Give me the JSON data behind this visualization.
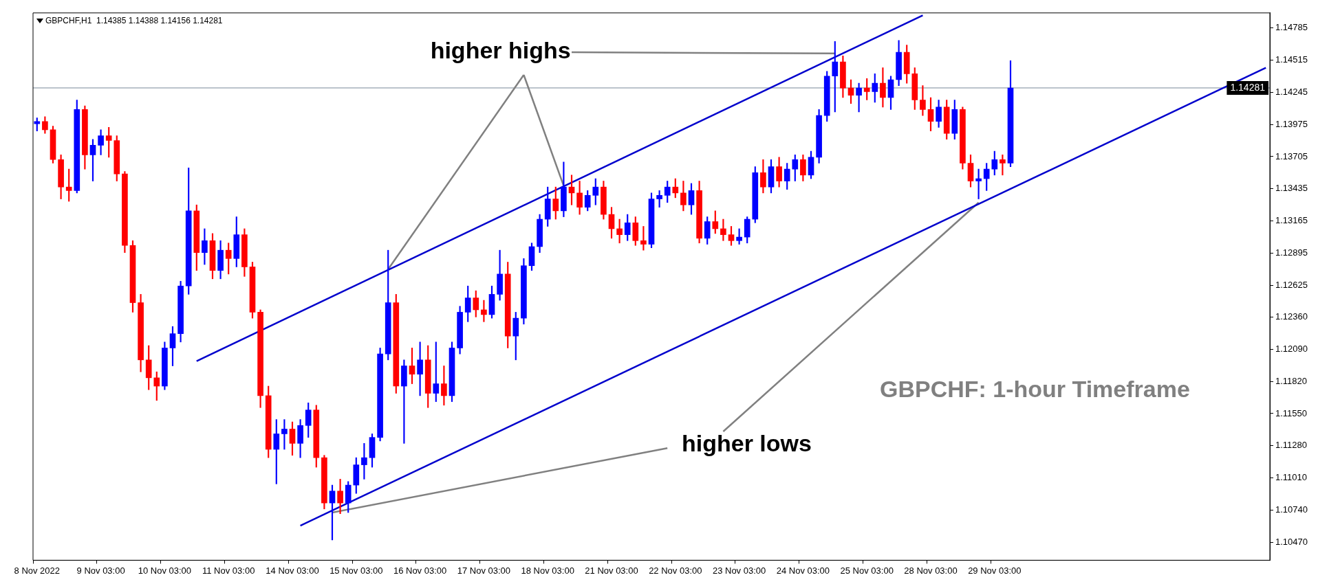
{
  "chart_data": {
    "type": "candlestick",
    "title": "GBPCHF,H1  1.14385 1.14388 1.14156 1.14281",
    "categories": [
      "8 Nov 2022",
      null,
      null,
      null,
      null,
      null,
      null,
      null,
      "9 Nov 03:00",
      null,
      null,
      null,
      null,
      null,
      null,
      null,
      "10 Nov 03:00",
      null,
      null,
      null,
      null,
      null,
      null,
      null,
      "11 Nov 03:00",
      null,
      null,
      null,
      null,
      null,
      null,
      null,
      "14 Nov 03:00",
      null,
      null,
      null,
      null,
      null,
      null,
      null,
      "15 Nov 03:00",
      null,
      null,
      null,
      null,
      null,
      null,
      null,
      "16 Nov 03:00",
      null,
      null,
      null,
      null,
      null,
      null,
      null,
      "17 Nov 03:00",
      null,
      null,
      null,
      null,
      null,
      null,
      null,
      "18 Nov 03:00",
      null,
      null,
      null,
      null,
      null,
      null,
      null,
      "21 Nov 03:00",
      null,
      null,
      null,
      null,
      null,
      null,
      null,
      "22 Nov 03:00",
      null,
      null,
      null,
      null,
      null,
      null,
      null,
      "23 Nov 03:00",
      null,
      null,
      null,
      null,
      null,
      null,
      null,
      "24 Nov 03:00",
      null,
      null,
      null,
      null,
      null,
      null,
      null,
      "25 Nov 03:00",
      null,
      null,
      null,
      null,
      null,
      null,
      null,
      "28 Nov 03:00",
      null,
      null,
      null,
      null,
      null,
      null,
      null,
      "29 Nov 03:00",
      null,
      null,
      null,
      null,
      null,
      null,
      null,
      null,
      null,
      null,
      null,
      null,
      null,
      null,
      null,
      null,
      null,
      null,
      null,
      null,
      null,
      null,
      null,
      null,
      null,
      null,
      null,
      null,
      null,
      null,
      null,
      null,
      null,
      null
    ],
    "ohlc": [
      [
        1.1398,
        1.1403,
        1.1392,
        1.14
      ],
      [
        1.14,
        1.1404,
        1.139,
        1.1393
      ],
      [
        1.1393,
        1.1396,
        1.1365,
        1.1368
      ],
      [
        1.1368,
        1.1372,
        1.1335,
        1.1345
      ],
      [
        1.1345,
        1.136,
        1.1333,
        1.1342
      ],
      [
        1.1342,
        1.1418,
        1.134,
        1.141
      ],
      [
        1.141,
        1.1413,
        1.136,
        1.1372
      ],
      [
        1.1372,
        1.1385,
        1.135,
        1.138
      ],
      [
        1.138,
        1.1393,
        1.1372,
        1.1388
      ],
      [
        1.1388,
        1.1395,
        1.137,
        1.1384
      ],
      [
        1.1384,
        1.1388,
        1.135,
        1.1356
      ],
      [
        1.1356,
        1.1358,
        1.129,
        1.1296
      ],
      [
        1.1296,
        1.13,
        1.124,
        1.1248
      ],
      [
        1.1248,
        1.1255,
        1.119,
        1.12
      ],
      [
        1.12,
        1.1212,
        1.1175,
        1.1185
      ],
      [
        1.1185,
        1.119,
        1.1166,
        1.1178
      ],
      [
        1.1178,
        1.1215,
        1.1175,
        1.121
      ],
      [
        1.121,
        1.1228,
        1.1195,
        1.1222
      ],
      [
        1.1222,
        1.1266,
        1.1215,
        1.1262
      ],
      [
        1.1262,
        1.1361,
        1.1255,
        1.1325
      ],
      [
        1.1325,
        1.133,
        1.1275,
        1.129
      ],
      [
        1.129,
        1.131,
        1.128,
        1.13
      ],
      [
        1.13,
        1.1306,
        1.1268,
        1.1275
      ],
      [
        1.1275,
        1.13,
        1.1268,
        1.1292
      ],
      [
        1.1292,
        1.1298,
        1.1272,
        1.1285
      ],
      [
        1.1285,
        1.132,
        1.1278,
        1.1305
      ],
      [
        1.1305,
        1.131,
        1.127,
        1.1278
      ],
      [
        1.1278,
        1.1282,
        1.1235,
        1.124
      ],
      [
        1.124,
        1.1242,
        1.116,
        1.117
      ],
      [
        1.117,
        1.1178,
        1.1118,
        1.1125
      ],
      [
        1.1125,
        1.115,
        1.1096,
        1.1138
      ],
      [
        1.1138,
        1.115,
        1.1125,
        1.1142
      ],
      [
        1.1142,
        1.1148,
        1.112,
        1.113
      ],
      [
        1.113,
        1.115,
        1.1118,
        1.1145
      ],
      [
        1.1145,
        1.1164,
        1.1135,
        1.1158
      ],
      [
        1.1158,
        1.1162,
        1.111,
        1.1118
      ],
      [
        1.1118,
        1.112,
        1.1075,
        1.108
      ],
      [
        1.108,
        1.1095,
        1.1049,
        1.109
      ],
      [
        1.109,
        1.11,
        1.1071,
        1.108
      ],
      [
        1.108,
        1.1098,
        1.1072,
        1.1095
      ],
      [
        1.1095,
        1.1118,
        1.1088,
        1.1112
      ],
      [
        1.1112,
        1.113,
        1.11,
        1.1118
      ],
      [
        1.1118,
        1.1138,
        1.111,
        1.1135
      ],
      [
        1.1135,
        1.121,
        1.1132,
        1.1205
      ],
      [
        1.1205,
        1.1292,
        1.12,
        1.1248
      ],
      [
        1.1248,
        1.1255,
        1.1172,
        1.1178
      ],
      [
        1.1178,
        1.12,
        1.113,
        1.1195
      ],
      [
        1.1195,
        1.121,
        1.118,
        1.1188
      ],
      [
        1.1188,
        1.1215,
        1.117,
        1.12
      ],
      [
        1.12,
        1.1212,
        1.116,
        1.1172
      ],
      [
        1.1172,
        1.1215,
        1.1165,
        1.118
      ],
      [
        1.118,
        1.1195,
        1.1162,
        1.117
      ],
      [
        1.117,
        1.1215,
        1.1165,
        1.121
      ],
      [
        1.121,
        1.1245,
        1.1205,
        1.124
      ],
      [
        1.124,
        1.1262,
        1.1232,
        1.1252
      ],
      [
        1.1252,
        1.1258,
        1.1236,
        1.1242
      ],
      [
        1.1242,
        1.125,
        1.1232,
        1.1238
      ],
      [
        1.1238,
        1.1262,
        1.1235,
        1.1255
      ],
      [
        1.1255,
        1.1292,
        1.125,
        1.1272
      ],
      [
        1.1272,
        1.1282,
        1.121,
        1.122
      ],
      [
        1.122,
        1.124,
        1.12,
        1.1235
      ],
      [
        1.1235,
        1.1285,
        1.123,
        1.1279
      ],
      [
        1.1279,
        1.1298,
        1.1275,
        1.1295
      ],
      [
        1.1295,
        1.1322,
        1.129,
        1.1318
      ],
      [
        1.1318,
        1.1345,
        1.1312,
        1.1335
      ],
      [
        1.1335,
        1.1345,
        1.1318,
        1.1325
      ],
      [
        1.1325,
        1.1366,
        1.132,
        1.1345
      ],
      [
        1.1345,
        1.1355,
        1.133,
        1.134
      ],
      [
        1.134,
        1.135,
        1.1322,
        1.1328
      ],
      [
        1.1328,
        1.1342,
        1.1325,
        1.1338
      ],
      [
        1.1338,
        1.1352,
        1.133,
        1.1345
      ],
      [
        1.1345,
        1.135,
        1.1318,
        1.1322
      ],
      [
        1.1322,
        1.1328,
        1.1302,
        1.131
      ],
      [
        1.131,
        1.1318,
        1.1298,
        1.1305
      ],
      [
        1.1305,
        1.1322,
        1.13,
        1.1315
      ],
      [
        1.1315,
        1.132,
        1.1296,
        1.13
      ],
      [
        1.13,
        1.1312,
        1.1292,
        1.1297
      ],
      [
        1.1297,
        1.134,
        1.1294,
        1.1335
      ],
      [
        1.1335,
        1.1342,
        1.1328,
        1.1338
      ],
      [
        1.1338,
        1.135,
        1.1332,
        1.1345
      ],
      [
        1.1345,
        1.1352,
        1.1336,
        1.134
      ],
      [
        1.134,
        1.135,
        1.1325,
        1.133
      ],
      [
        1.133,
        1.1348,
        1.1322,
        1.1342
      ],
      [
        1.1342,
        1.135,
        1.1298,
        1.1302
      ],
      [
        1.1302,
        1.132,
        1.1297,
        1.1316
      ],
      [
        1.1316,
        1.1325,
        1.1306,
        1.131
      ],
      [
        1.131,
        1.1318,
        1.13,
        1.1305
      ],
      [
        1.1305,
        1.1312,
        1.1296,
        1.13
      ],
      [
        1.13,
        1.131,
        1.1297,
        1.1303
      ],
      [
        1.1303,
        1.132,
        1.1298,
        1.1318
      ],
      [
        1.1318,
        1.1362,
        1.1315,
        1.1357
      ],
      [
        1.1357,
        1.1368,
        1.134,
        1.1345
      ],
      [
        1.1345,
        1.1368,
        1.134,
        1.1362
      ],
      [
        1.1362,
        1.137,
        1.1345,
        1.135
      ],
      [
        1.135,
        1.1365,
        1.1343,
        1.136
      ],
      [
        1.136,
        1.1372,
        1.135,
        1.1368
      ],
      [
        1.1368,
        1.1372,
        1.135,
        1.1355
      ],
      [
        1.1355,
        1.1375,
        1.1352,
        1.137
      ],
      [
        1.137,
        1.141,
        1.1365,
        1.1405
      ],
      [
        1.1405,
        1.1442,
        1.14,
        1.1438
      ],
      [
        1.1438,
        1.1467,
        1.1408,
        1.145
      ],
      [
        1.145,
        1.1455,
        1.142,
        1.1428
      ],
      [
        1.1428,
        1.1435,
        1.1415,
        1.1422
      ],
      [
        1.1422,
        1.1432,
        1.1408,
        1.1428
      ],
      [
        1.1428,
        1.1436,
        1.1418,
        1.1425
      ],
      [
        1.1425,
        1.144,
        1.1416,
        1.1432
      ],
      [
        1.1432,
        1.1445,
        1.1412,
        1.142
      ],
      [
        1.142,
        1.1438,
        1.141,
        1.1435
      ],
      [
        1.1435,
        1.1468,
        1.143,
        1.1458
      ],
      [
        1.1458,
        1.1464,
        1.1432,
        1.144
      ],
      [
        1.144,
        1.1445,
        1.141,
        1.1418
      ],
      [
        1.1418,
        1.143,
        1.1405,
        1.141
      ],
      [
        1.141,
        1.142,
        1.1392,
        1.14
      ],
      [
        1.14,
        1.1418,
        1.1395,
        1.1412
      ],
      [
        1.1412,
        1.1418,
        1.1385,
        1.139
      ],
      [
        1.139,
        1.1418,
        1.1385,
        1.141
      ],
      [
        1.141,
        1.1412,
        1.136,
        1.1365
      ],
      [
        1.1365,
        1.1372,
        1.1345,
        1.135
      ],
      [
        1.135,
        1.136,
        1.1335,
        1.1352
      ],
      [
        1.1352,
        1.1365,
        1.1342,
        1.136
      ],
      [
        1.136,
        1.1375,
        1.1355,
        1.1368
      ],
      [
        1.1368,
        1.1372,
        1.1355,
        1.1365
      ],
      [
        1.1365,
        1.1451,
        1.1362,
        1.14281
      ],
      null,
      null,
      null,
      null,
      null,
      null,
      null,
      null,
      null,
      null,
      null,
      null,
      null,
      null,
      null,
      null,
      null,
      null,
      null,
      null,
      null,
      null,
      null,
      null,
      null,
      null,
      null,
      null,
      null,
      null,
      null,
      null
    ],
    "colors": [
      "#0000ff",
      "#ff0000",
      "#ff0000",
      "#ff0000",
      "#ff0000",
      "#0000ff",
      "#ff0000",
      "#0000ff",
      "#0000ff",
      "#ff0000",
      "#ff0000",
      "#ff0000",
      "#ff0000",
      "#ff0000",
      "#ff0000",
      "#ff0000",
      "#0000ff",
      "#0000ff",
      "#0000ff",
      "#0000ff",
      "#ff0000",
      "#0000ff",
      "#ff0000",
      "#0000ff",
      "#ff0000",
      "#0000ff",
      "#ff0000",
      "#ff0000",
      "#ff0000",
      "#ff0000",
      "#0000ff",
      "#0000ff",
      "#ff0000",
      "#0000ff",
      "#0000ff",
      "#ff0000",
      "#ff0000",
      "#0000ff",
      "#ff0000",
      "#0000ff",
      "#0000ff",
      "#0000ff",
      "#0000ff",
      "#0000ff",
      "#0000ff",
      "#ff0000",
      "#0000ff",
      "#ff0000",
      "#0000ff",
      "#ff0000",
      "#0000ff",
      "#ff0000",
      "#0000ff",
      "#0000ff",
      "#0000ff",
      "#ff0000",
      "#ff0000",
      "#0000ff",
      "#0000ff",
      "#ff0000",
      "#0000ff",
      "#0000ff",
      "#0000ff",
      "#0000ff",
      "#0000ff",
      "#ff0000",
      "#0000ff",
      "#ff0000",
      "#ff0000",
      "#0000ff",
      "#0000ff",
      "#ff0000",
      "#ff0000",
      "#ff0000",
      "#0000ff",
      "#ff0000",
      "#ff0000",
      "#0000ff",
      "#0000ff",
      "#0000ff",
      "#ff0000",
      "#ff0000",
      "#0000ff",
      "#ff0000",
      "#0000ff",
      "#ff0000",
      "#ff0000",
      "#ff0000",
      "#0000ff",
      "#0000ff",
      "#0000ff",
      "#ff0000",
      "#0000ff",
      "#ff0000",
      "#0000ff",
      "#0000ff",
      "#ff0000",
      "#0000ff",
      "#0000ff",
      "#0000ff",
      "#0000ff",
      "#ff0000",
      "#ff0000",
      "#0000ff",
      "#ff0000",
      "#0000ff",
      "#ff0000",
      "#0000ff",
      "#0000ff",
      "#ff0000",
      "#ff0000",
      "#ff0000",
      "#ff0000",
      "#0000ff",
      "#ff0000",
      "#0000ff",
      "#ff0000",
      "#ff0000",
      "#0000ff",
      "#0000ff",
      "#0000ff",
      "#ff0000",
      "#0000ff",
      null,
      null,
      null,
      null,
      null,
      null,
      null,
      null,
      null,
      null,
      null,
      null,
      null,
      null,
      null,
      null,
      null,
      null,
      null,
      null,
      null,
      null,
      null,
      null,
      null,
      null,
      null,
      null,
      null,
      null,
      null,
      null
    ],
    "series": [
      {
        "type": "line",
        "color": "#0000cc",
        "values": [
          null,
          null,
          null,
          null,
          null,
          null,
          null,
          null,
          null,
          null,
          null,
          null,
          null,
          null,
          null,
          null,
          null,
          null,
          null,
          null,
          1.1199,
          null,
          null,
          null,
          null,
          null,
          null,
          null,
          null,
          null,
          null,
          null,
          null,
          null,
          null,
          null,
          null,
          null,
          null,
          null,
          null,
          null,
          null,
          null,
          null,
          null,
          null,
          null,
          null,
          null,
          null,
          null,
          null,
          null,
          null,
          null,
          null,
          null,
          null,
          null,
          null,
          null,
          null,
          null,
          null,
          null,
          null,
          null,
          null,
          null,
          null,
          null,
          null,
          null,
          null,
          null,
          null,
          null,
          null,
          null,
          null,
          null,
          null,
          null,
          null,
          null,
          null,
          null,
          null,
          null,
          null,
          null,
          null,
          null,
          null,
          null,
          null,
          null,
          null,
          null,
          null,
          null,
          null,
          null,
          null,
          null,
          null,
          null,
          null,
          null,
          null,
          1.1489,
          null,
          null,
          null,
          null,
          null,
          null,
          null,
          null,
          null,
          null,
          null,
          null,
          null,
          null,
          null,
          null,
          null,
          null,
          null,
          null,
          null,
          null,
          null,
          null,
          null,
          null,
          null,
          null,
          null,
          null,
          null,
          null,
          null,
          null,
          null,
          null,
          null,
          null,
          null,
          null,
          null,
          null,
          null
        ]
      },
      {
        "type": "line",
        "color": "#0000cc",
        "values": [
          null,
          null,
          null,
          null,
          null,
          null,
          null,
          null,
          null,
          null,
          null,
          null,
          null,
          null,
          null,
          null,
          null,
          null,
          null,
          null,
          null,
          null,
          null,
          null,
          null,
          null,
          null,
          null,
          null,
          null,
          null,
          null,
          null,
          1.1061,
          null,
          null,
          null,
          null,
          null,
          null,
          null,
          null,
          null,
          null,
          null,
          null,
          null,
          null,
          null,
          null,
          null,
          null,
          null,
          null,
          null,
          null,
          null,
          null,
          null,
          null,
          null,
          null,
          null,
          null,
          null,
          null,
          null,
          null,
          null,
          null,
          null,
          null,
          null,
          null,
          null,
          null,
          null,
          null,
          null,
          null,
          null,
          null,
          null,
          null,
          null,
          null,
          null,
          null,
          null,
          null,
          null,
          null,
          null,
          null,
          null,
          null,
          null,
          null,
          null,
          null,
          null,
          null,
          null,
          null,
          null,
          null,
          null,
          null,
          null,
          null,
          null,
          null,
          null,
          null,
          null,
          null,
          null,
          null,
          null,
          null,
          null,
          null,
          null,
          null,
          null,
          null,
          null,
          null,
          null,
          null,
          null,
          null,
          null,
          null,
          null,
          null,
          null,
          null,
          null,
          null,
          null,
          null,
          null,
          null,
          null,
          null,
          null,
          null,
          null,
          null,
          null,
          null,
          null,
          null,
          1.1445
        ]
      },
      {
        "type": "line",
        "color": "#808080",
        "values": [
          null,
          null,
          null,
          null,
          null,
          null,
          null,
          null,
          null,
          null,
          null,
          null,
          null,
          null,
          null,
          null,
          null,
          null,
          null,
          null,
          null,
          null,
          null,
          null,
          null,
          null,
          null,
          null,
          null,
          null,
          null,
          null,
          null,
          null,
          null,
          null,
          null,
          null,
          null,
          null,
          null,
          null,
          null,
          null,
          null,
          null,
          null,
          null,
          null,
          null,
          null,
          null,
          null,
          null,
          null,
          null,
          null,
          null,
          null,
          null,
          null,
          null,
          null,
          null,
          null,
          null,
          null,
          1.1458,
          null,
          null,
          null,
          null,
          null,
          null,
          null,
          null,
          null,
          null,
          null,
          null,
          null,
          null,
          null,
          null,
          null,
          null,
          null,
          null,
          null,
          null,
          null,
          null,
          null,
          null,
          null,
          null,
          null,
          null,
          null,
          null,
          1.1457,
          null,
          null,
          null,
          null,
          null,
          null,
          null,
          null,
          null,
          null,
          null,
          null,
          null,
          null,
          null,
          null,
          null,
          null,
          null,
          null,
          null,
          null,
          null,
          null,
          null,
          null,
          null,
          null,
          null,
          null,
          null,
          null,
          null,
          null,
          null,
          null,
          null,
          null,
          null,
          null,
          null,
          null,
          null,
          null,
          null,
          null,
          null,
          null,
          null,
          null,
          null,
          null,
          null,
          null
        ]
      },
      {
        "type": "line",
        "color": "#808080",
        "values": [
          null,
          null,
          null,
          null,
          null,
          null,
          null,
          null,
          null,
          null,
          null,
          null,
          null,
          null,
          null,
          null,
          null,
          null,
          null,
          null,
          null,
          null,
          null,
          null,
          null,
          null,
          null,
          null,
          null,
          null,
          null,
          null,
          null,
          null,
          null,
          null,
          null,
          null,
          null,
          null,
          null,
          null,
          null,
          null,
          1.1276,
          null,
          null,
          null,
          null,
          null,
          null,
          null,
          null,
          null,
          null,
          null,
          null,
          null,
          null,
          null,
          null,
          1.1439,
          null,
          null,
          null,
          null,
          null,
          null,
          null,
          null,
          null,
          null,
          null,
          null,
          null,
          null,
          null,
          null,
          null,
          null,
          null,
          null,
          null,
          null,
          null,
          null,
          null,
          null,
          null,
          null,
          null,
          null,
          null,
          null,
          null,
          null,
          null,
          null,
          null,
          null,
          null,
          null,
          null,
          null,
          null,
          null,
          null,
          null,
          null,
          null,
          null,
          null,
          null,
          null,
          null,
          null,
          null,
          null,
          null,
          null,
          null,
          null,
          null,
          null,
          null,
          null,
          null,
          null,
          null,
          null,
          null,
          null,
          null,
          null,
          null,
          null,
          null,
          null,
          null,
          null,
          null,
          null,
          null,
          null,
          null,
          null,
          null,
          null,
          null,
          null,
          null,
          null,
          null,
          null,
          null
        ]
      },
      {
        "type": "line",
        "color": "#808080",
        "values": [
          null,
          null,
          null,
          null,
          null,
          null,
          null,
          null,
          null,
          null,
          null,
          null,
          null,
          null,
          null,
          null,
          null,
          null,
          null,
          null,
          null,
          null,
          null,
          null,
          null,
          null,
          null,
          null,
          null,
          null,
          null,
          null,
          null,
          null,
          null,
          null,
          null,
          null,
          null,
          null,
          null,
          null,
          null,
          null,
          null,
          null,
          null,
          null,
          null,
          null,
          null,
          null,
          null,
          null,
          null,
          null,
          null,
          null,
          null,
          null,
          null,
          1.1439,
          null,
          null,
          null,
          null,
          1.1346,
          null,
          null,
          null,
          null,
          null,
          null,
          null,
          null,
          null,
          null,
          null,
          null,
          null,
          null,
          null,
          null,
          null,
          null,
          null,
          null,
          null,
          null,
          null,
          null,
          null,
          null,
          null,
          null,
          null,
          null,
          null,
          null,
          null,
          null,
          null,
          null,
          null,
          null,
          null,
          null,
          null,
          null,
          null,
          null,
          null,
          null,
          null,
          null,
          null,
          null,
          null,
          null,
          null,
          null,
          null,
          null,
          null,
          null,
          null,
          null,
          null,
          null,
          null,
          null,
          null,
          null,
          null,
          null,
          null,
          null,
          null,
          null,
          null,
          null,
          null,
          null,
          null,
          null,
          null,
          null,
          null,
          null,
          null,
          null,
          null,
          null,
          null,
          null
        ]
      },
      {
        "type": "line",
        "color": "#808080",
        "values": [
          null,
          null,
          null,
          null,
          null,
          null,
          null,
          null,
          null,
          null,
          null,
          null,
          null,
          null,
          null,
          null,
          null,
          null,
          null,
          null,
          null,
          null,
          null,
          null,
          null,
          null,
          null,
          null,
          null,
          null,
          null,
          null,
          null,
          null,
          null,
          null,
          null,
          1.1072,
          null,
          null,
          null,
          null,
          null,
          null,
          null,
          null,
          null,
          null,
          null,
          null,
          null,
          null,
          null,
          null,
          null,
          null,
          null,
          null,
          null,
          null,
          null,
          null,
          null,
          null,
          null,
          null,
          null,
          null,
          null,
          null,
          null,
          null,
          null,
          null,
          null,
          null,
          null,
          null,
          null,
          1.1126,
          null,
          null,
          null,
          null,
          null,
          null,
          null,
          null,
          null,
          null,
          null,
          null,
          null,
          null,
          null,
          null,
          null,
          null,
          null,
          null,
          null,
          null,
          null,
          null,
          null,
          null,
          null,
          null,
          null,
          null,
          null,
          null,
          null,
          null,
          null,
          null,
          null,
          null,
          null,
          null,
          null,
          null,
          null,
          null,
          null,
          null,
          null,
          null,
          null,
          null,
          null,
          null,
          null,
          null,
          null,
          null,
          null,
          null,
          null,
          null,
          null,
          null,
          null,
          null,
          null,
          null,
          null,
          null,
          null,
          null,
          null,
          null,
          null,
          null,
          null
        ]
      },
      {
        "type": "line",
        "color": "#808080",
        "values": [
          null,
          null,
          null,
          null,
          null,
          null,
          null,
          null,
          null,
          null,
          null,
          null,
          null,
          null,
          null,
          null,
          null,
          null,
          null,
          null,
          null,
          null,
          null,
          null,
          null,
          null,
          null,
          null,
          null,
          null,
          null,
          null,
          null,
          null,
          null,
          null,
          null,
          null,
          null,
          null,
          null,
          null,
          null,
          null,
          null,
          null,
          null,
          null,
          null,
          null,
          null,
          null,
          null,
          null,
          null,
          null,
          null,
          null,
          null,
          null,
          null,
          null,
          null,
          null,
          null,
          null,
          null,
          null,
          null,
          null,
          null,
          null,
          null,
          null,
          null,
          null,
          null,
          null,
          null,
          null,
          null,
          null,
          null,
          null,
          null,
          null,
          1.114,
          null,
          null,
          null,
          null,
          null,
          null,
          null,
          null,
          null,
          null,
          null,
          null,
          null,
          null,
          null,
          null,
          null,
          null,
          null,
          null,
          null,
          null,
          null,
          null,
          null,
          null,
          null,
          null,
          null,
          null,
          null,
          1.1332,
          null,
          null,
          null,
          null,
          null,
          null,
          null,
          null,
          null,
          null,
          null,
          null,
          null,
          null,
          null,
          null,
          null,
          null,
          null,
          null,
          null,
          null,
          null,
          null,
          null,
          null,
          null,
          null,
          null,
          null,
          null,
          null,
          null,
          null,
          null,
          null
        ]
      }
    ],
    "annotations": [
      "higher highs",
      "higher lows",
      "GBPCHF: 1-hour Timeframe"
    ],
    "ref_lines": [
      {
        "axis": "y",
        "value": 1.14281,
        "label": "1.14281",
        "color": "#778899"
      }
    ],
    "ylim": [
      1.1032,
      1.1491
    ],
    "yticks": [
      1.14785,
      1.14515,
      1.14245,
      1.13975,
      1.13705,
      1.13435,
      1.13165,
      1.12895,
      1.12625,
      {
        "value": 1.1236,
        "label": "1.12360"
      },
      {
        "value": 1.1209,
        "label": "1.12090"
      },
      {
        "value": 1.1182,
        "label": "1.11820"
      },
      {
        "value": 1.1155,
        "label": "1.11550"
      },
      {
        "value": 1.1128,
        "label": "1.11280"
      },
      {
        "value": 1.1101,
        "label": "1.11010"
      },
      {
        "value": 1.1074,
        "label": "1.10740"
      },
      {
        "value": 1.1047,
        "label": "1.10470"
      }
    ],
    "grid": false
  }
}
